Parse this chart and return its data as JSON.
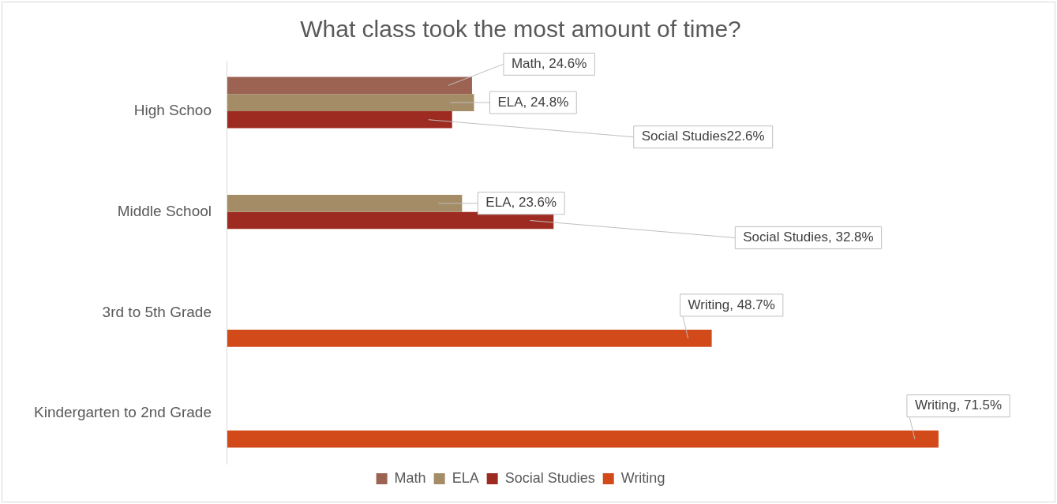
{
  "chart_data": {
    "type": "bar",
    "orientation": "horizontal",
    "title": "What class took the most amount of time?",
    "categories": [
      "High Schoo",
      "Middle School",
      "3rd to 5th Grade",
      "Kindergarten to 2nd Grade"
    ],
    "series": [
      {
        "name": "Math",
        "color": "#9c6352",
        "values": [
          24.6,
          null,
          null,
          null
        ],
        "value_labels": [
          "Math, 24.6%",
          null,
          null,
          null
        ]
      },
      {
        "name": "ELA",
        "color": "#a48c67",
        "values": [
          24.8,
          23.6,
          null,
          null
        ],
        "value_labels": [
          "ELA, 24.8%",
          "ELA, 23.6%",
          null,
          null
        ]
      },
      {
        "name": "Social Studies",
        "color": "#9e2b21",
        "values": [
          22.6,
          32.8,
          null,
          null
        ],
        "value_labels": [
          "Social Studies22.6%",
          "Social Studies, 32.8%",
          null,
          null
        ]
      },
      {
        "name": "Writing",
        "color": "#d24a1a",
        "values": [
          null,
          null,
          48.7,
          71.5
        ],
        "value_labels": [
          null,
          null,
          "Writing, 48.7%",
          "Writing, 71.5%"
        ]
      }
    ],
    "tick_labels": "y",
    "legend": "bottom"
  }
}
